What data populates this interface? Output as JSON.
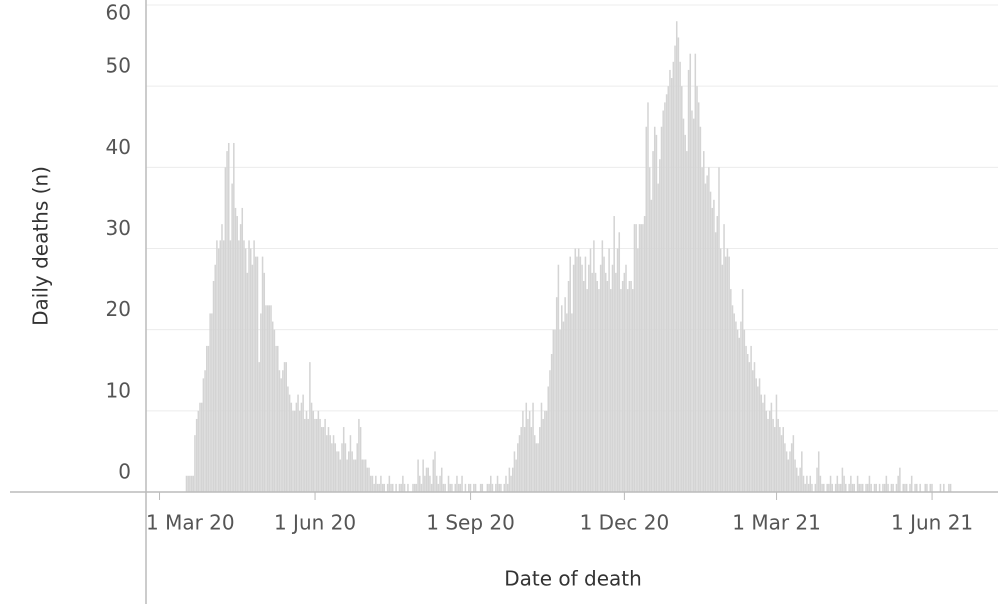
{
  "chart_data": {
    "type": "bar",
    "x_label": "Date of death",
    "y_label": "Daily deaths (n)",
    "color": "#d4d4d4",
    "grid": true,
    "xlim": [
      "2020-02-22",
      "2021-07-10"
    ],
    "xticks": [
      {
        "value": "2020-03-01",
        "label": "1 Mar 20"
      },
      {
        "value": "2020-06-01",
        "label": "1 Jun 20"
      },
      {
        "value": "2020-09-01",
        "label": "1 Sep 20"
      },
      {
        "value": "2020-12-01",
        "label": "1 Dec 20"
      },
      {
        "value": "2021-03-01",
        "label": "1 Mar 21"
      },
      {
        "value": "2021-06-01",
        "label": "1 Jun 21"
      }
    ],
    "ylim": [
      0,
      60
    ],
    "yticks": [
      0,
      10,
      20,
      30,
      40,
      50,
      60
    ],
    "x": [
      "2020-03-17",
      "2020-03-18",
      "2020-03-19",
      "2020-03-20",
      "2020-03-21",
      "2020-03-22",
      "2020-03-23",
      "2020-03-24",
      "2020-03-25",
      "2020-03-26",
      "2020-03-27",
      "2020-03-28",
      "2020-03-29",
      "2020-03-30",
      "2020-03-31",
      "2020-04-01",
      "2020-04-02",
      "2020-04-03",
      "2020-04-04",
      "2020-04-05",
      "2020-04-06",
      "2020-04-07",
      "2020-04-08",
      "2020-04-09",
      "2020-04-10",
      "2020-04-11",
      "2020-04-12",
      "2020-04-13",
      "2020-04-14",
      "2020-04-15",
      "2020-04-16",
      "2020-04-17",
      "2020-04-18",
      "2020-04-19",
      "2020-04-20",
      "2020-04-21",
      "2020-04-22",
      "2020-04-23",
      "2020-04-24",
      "2020-04-25",
      "2020-04-26",
      "2020-04-27",
      "2020-04-28",
      "2020-04-29",
      "2020-04-30",
      "2020-05-01",
      "2020-05-02",
      "2020-05-03",
      "2020-05-04",
      "2020-05-05",
      "2020-05-06",
      "2020-05-07",
      "2020-05-08",
      "2020-05-09",
      "2020-05-10",
      "2020-05-11",
      "2020-05-12",
      "2020-05-13",
      "2020-05-14",
      "2020-05-15",
      "2020-05-16",
      "2020-05-17",
      "2020-05-18",
      "2020-05-19",
      "2020-05-20",
      "2020-05-21",
      "2020-05-22",
      "2020-05-23",
      "2020-05-24",
      "2020-05-25",
      "2020-05-26",
      "2020-05-27",
      "2020-05-28",
      "2020-05-29",
      "2020-05-30",
      "2020-05-31",
      "2020-06-01",
      "2020-06-02",
      "2020-06-03",
      "2020-06-04",
      "2020-06-05",
      "2020-06-06",
      "2020-06-07",
      "2020-06-08",
      "2020-06-09",
      "2020-06-10",
      "2020-06-11",
      "2020-06-12",
      "2020-06-13",
      "2020-06-14",
      "2020-06-15",
      "2020-06-16",
      "2020-06-17",
      "2020-06-18",
      "2020-06-19",
      "2020-06-20",
      "2020-06-21",
      "2020-06-22",
      "2020-06-23",
      "2020-06-24",
      "2020-06-25",
      "2020-06-26",
      "2020-06-27",
      "2020-06-28",
      "2020-06-29",
      "2020-06-30",
      "2020-07-01",
      "2020-07-02",
      "2020-07-03",
      "2020-07-04",
      "2020-07-05",
      "2020-07-06",
      "2020-07-07",
      "2020-07-08",
      "2020-07-09",
      "2020-07-10",
      "2020-07-11",
      "2020-07-12",
      "2020-07-13",
      "2020-07-14",
      "2020-07-15",
      "2020-07-16",
      "2020-07-17",
      "2020-07-18",
      "2020-07-19",
      "2020-07-20",
      "2020-07-21",
      "2020-07-22",
      "2020-07-23",
      "2020-07-24",
      "2020-07-25",
      "2020-07-26",
      "2020-07-27",
      "2020-07-28",
      "2020-07-29",
      "2020-07-30",
      "2020-07-31",
      "2020-08-01",
      "2020-08-02",
      "2020-08-03",
      "2020-08-04",
      "2020-08-05",
      "2020-08-06",
      "2020-08-07",
      "2020-08-08",
      "2020-08-09",
      "2020-08-10",
      "2020-08-11",
      "2020-08-12",
      "2020-08-13",
      "2020-08-14",
      "2020-08-15",
      "2020-08-16",
      "2020-08-17",
      "2020-08-18",
      "2020-08-19",
      "2020-08-20",
      "2020-08-21",
      "2020-08-22",
      "2020-08-23",
      "2020-08-24",
      "2020-08-25",
      "2020-08-26",
      "2020-08-27",
      "2020-08-28",
      "2020-08-29",
      "2020-08-30",
      "2020-08-31",
      "2020-09-01",
      "2020-09-02",
      "2020-09-03",
      "2020-09-04",
      "2020-09-05",
      "2020-09-06",
      "2020-09-07",
      "2020-09-08",
      "2020-09-09",
      "2020-09-10",
      "2020-09-11",
      "2020-09-12",
      "2020-09-13",
      "2020-09-14",
      "2020-09-15",
      "2020-09-16",
      "2020-09-17",
      "2020-09-18",
      "2020-09-19",
      "2020-09-20",
      "2020-09-21",
      "2020-09-22",
      "2020-09-23",
      "2020-09-24",
      "2020-09-25",
      "2020-09-26",
      "2020-09-27",
      "2020-09-28",
      "2020-09-29",
      "2020-09-30",
      "2020-10-01",
      "2020-10-02",
      "2020-10-03",
      "2020-10-04",
      "2020-10-05",
      "2020-10-06",
      "2020-10-07",
      "2020-10-08",
      "2020-10-09",
      "2020-10-10",
      "2020-10-11",
      "2020-10-12",
      "2020-10-13",
      "2020-10-14",
      "2020-10-15",
      "2020-10-16",
      "2020-10-17",
      "2020-10-18",
      "2020-10-19",
      "2020-10-20",
      "2020-10-21",
      "2020-10-22",
      "2020-10-23",
      "2020-10-24",
      "2020-10-25",
      "2020-10-26",
      "2020-10-27",
      "2020-10-28",
      "2020-10-29",
      "2020-10-30",
      "2020-10-31",
      "2020-11-01",
      "2020-11-02",
      "2020-11-03",
      "2020-11-04",
      "2020-11-05",
      "2020-11-06",
      "2020-11-07",
      "2020-11-08",
      "2020-11-09",
      "2020-11-10",
      "2020-11-11",
      "2020-11-12",
      "2020-11-13",
      "2020-11-14",
      "2020-11-15",
      "2020-11-16",
      "2020-11-17",
      "2020-11-18",
      "2020-11-19",
      "2020-11-20",
      "2020-11-21",
      "2020-11-22",
      "2020-11-23",
      "2020-11-24",
      "2020-11-25",
      "2020-11-26",
      "2020-11-27",
      "2020-11-28",
      "2020-11-29",
      "2020-11-30",
      "2020-12-01",
      "2020-12-02",
      "2020-12-03",
      "2020-12-04",
      "2020-12-05",
      "2020-12-06",
      "2020-12-07",
      "2020-12-08",
      "2020-12-09",
      "2020-12-10",
      "2020-12-11",
      "2020-12-12",
      "2020-12-13",
      "2020-12-14",
      "2020-12-15",
      "2020-12-16",
      "2020-12-17",
      "2020-12-18",
      "2020-12-19",
      "2020-12-20",
      "2020-12-21",
      "2020-12-22",
      "2020-12-23",
      "2020-12-24",
      "2020-12-25",
      "2020-12-26",
      "2020-12-27",
      "2020-12-28",
      "2020-12-29",
      "2020-12-30",
      "2020-12-31",
      "2021-01-01",
      "2021-01-02",
      "2021-01-03",
      "2021-01-04",
      "2021-01-05",
      "2021-01-06",
      "2021-01-07",
      "2021-01-08",
      "2021-01-09",
      "2021-01-10",
      "2021-01-11",
      "2021-01-12",
      "2021-01-13",
      "2021-01-14",
      "2021-01-15",
      "2021-01-16",
      "2021-01-17",
      "2021-01-18",
      "2021-01-19",
      "2021-01-20",
      "2021-01-21",
      "2021-01-22",
      "2021-01-23",
      "2021-01-24",
      "2021-01-25",
      "2021-01-26",
      "2021-01-27",
      "2021-01-28",
      "2021-01-29",
      "2021-01-30",
      "2021-01-31",
      "2021-02-01",
      "2021-02-02",
      "2021-02-03",
      "2021-02-04",
      "2021-02-05",
      "2021-02-06",
      "2021-02-07",
      "2021-02-08",
      "2021-02-09",
      "2021-02-10",
      "2021-02-11",
      "2021-02-12",
      "2021-02-13",
      "2021-02-14",
      "2021-02-15",
      "2021-02-16",
      "2021-02-17",
      "2021-02-18",
      "2021-02-19",
      "2021-02-20",
      "2021-02-21",
      "2021-02-22",
      "2021-02-23",
      "2021-02-24",
      "2021-02-25",
      "2021-02-26",
      "2021-02-27",
      "2021-02-28",
      "2021-03-01",
      "2021-03-02",
      "2021-03-03",
      "2021-03-04",
      "2021-03-05",
      "2021-03-06",
      "2021-03-07",
      "2021-03-08",
      "2021-03-09",
      "2021-03-10",
      "2021-03-11",
      "2021-03-12",
      "2021-03-13",
      "2021-03-14",
      "2021-03-15",
      "2021-03-16",
      "2021-03-17",
      "2021-03-18",
      "2021-03-19",
      "2021-03-20",
      "2021-03-21",
      "2021-03-22",
      "2021-03-23",
      "2021-03-24",
      "2021-03-25",
      "2021-03-26",
      "2021-03-27",
      "2021-03-28",
      "2021-03-29",
      "2021-03-30",
      "2021-03-31",
      "2021-04-01",
      "2021-04-02",
      "2021-04-03",
      "2021-04-04",
      "2021-04-05",
      "2021-04-06",
      "2021-04-07",
      "2021-04-08",
      "2021-04-09",
      "2021-04-10",
      "2021-04-11",
      "2021-04-12",
      "2021-04-13",
      "2021-04-14",
      "2021-04-15",
      "2021-04-16",
      "2021-04-17",
      "2021-04-18",
      "2021-04-19",
      "2021-04-20",
      "2021-04-21",
      "2021-04-22",
      "2021-04-23",
      "2021-04-24",
      "2021-04-25",
      "2021-04-26",
      "2021-04-27",
      "2021-04-28",
      "2021-04-29",
      "2021-04-30",
      "2021-05-01",
      "2021-05-02",
      "2021-05-03",
      "2021-05-04",
      "2021-05-05",
      "2021-05-06",
      "2021-05-07",
      "2021-05-08",
      "2021-05-09",
      "2021-05-10",
      "2021-05-11",
      "2021-05-12",
      "2021-05-13",
      "2021-05-14",
      "2021-05-15",
      "2021-05-16",
      "2021-05-17",
      "2021-05-18",
      "2021-05-19",
      "2021-05-20",
      "2021-05-21",
      "2021-05-22",
      "2021-05-23",
      "2021-05-24",
      "2021-05-25",
      "2021-05-26",
      "2021-05-27",
      "2021-05-28",
      "2021-05-29",
      "2021-05-30",
      "2021-05-31",
      "2021-06-01",
      "2021-06-02",
      "2021-06-03",
      "2021-06-04",
      "2021-06-05",
      "2021-06-06",
      "2021-06-07",
      "2021-06-08",
      "2021-06-09",
      "2021-06-10",
      "2021-06-11",
      "2021-06-12"
    ],
    "values": [
      2,
      2,
      2,
      2,
      2,
      7,
      9,
      10,
      11,
      11,
      14,
      15,
      18,
      18,
      22,
      22,
      26,
      28,
      31,
      30,
      31,
      33,
      31,
      40,
      42,
      43,
      31,
      38,
      43,
      35,
      34,
      31,
      33,
      35,
      31,
      30,
      27,
      31,
      30,
      28,
      31,
      29,
      29,
      16,
      22,
      29,
      27,
      23,
      23,
      23,
      23,
      21,
      20,
      18,
      18,
      15,
      14,
      15,
      16,
      16,
      13,
      12,
      11,
      10,
      10,
      11,
      12,
      10,
      11,
      12,
      9,
      10,
      9,
      16,
      11,
      10,
      9,
      9,
      10,
      9,
      8,
      8,
      9,
      7,
      8,
      7,
      6,
      7,
      6,
      5,
      5,
      4,
      6,
      8,
      6,
      4,
      5,
      7,
      5,
      4,
      4,
      6,
      9,
      8,
      4,
      4,
      4,
      3,
      3,
      2,
      2,
      1,
      2,
      1,
      1,
      2,
      1,
      1,
      0,
      1,
      2,
      1,
      1,
      0,
      1,
      0,
      1,
      1,
      2,
      1,
      0,
      1,
      0,
      0,
      1,
      1,
      1,
      4,
      2,
      1,
      4,
      2,
      3,
      3,
      2,
      1,
      4,
      5,
      2,
      1,
      2,
      3,
      1,
      1,
      0,
      2,
      1,
      1,
      0,
      1,
      2,
      1,
      1,
      2,
      0,
      1,
      0,
      1,
      1,
      0,
      1,
      1,
      0,
      0,
      1,
      1,
      0,
      0,
      1,
      1,
      2,
      1,
      0,
      1,
      2,
      1,
      1,
      0,
      1,
      2,
      1,
      3,
      2,
      3,
      5,
      4,
      6,
      7,
      8,
      10,
      8,
      11,
      9,
      10,
      8,
      11,
      7,
      6,
      6,
      8,
      11,
      9,
      10,
      10,
      13,
      15,
      17,
      20,
      20,
      24,
      28,
      20,
      23,
      21,
      24,
      22,
      26,
      29,
      22,
      28,
      30,
      29,
      30,
      29,
      28,
      26,
      29,
      25,
      28,
      30,
      27,
      31,
      27,
      26,
      25,
      28,
      31,
      29,
      27,
      26,
      30,
      25,
      28,
      34,
      27,
      30,
      32,
      25,
      26,
      27,
      28,
      25,
      26,
      26,
      25,
      33,
      33,
      30,
      33,
      33,
      33,
      34,
      45,
      48,
      40,
      36,
      42,
      45,
      44,
      38,
      41,
      45,
      47,
      48,
      49,
      50,
      52,
      51,
      53,
      55,
      58,
      56,
      53,
      50,
      46,
      44,
      42,
      52,
      54,
      47,
      46,
      54,
      50,
      48,
      45,
      40,
      42,
      38,
      39,
      40,
      37,
      35,
      36,
      32,
      34,
      40,
      30,
      28,
      33,
      29,
      30,
      29,
      25,
      23,
      22,
      21,
      20,
      19,
      21,
      25,
      20,
      18,
      17,
      16,
      18,
      15,
      16,
      14,
      13,
      14,
      12,
      11,
      12,
      10,
      9,
      10,
      11,
      9,
      8,
      12,
      9,
      8,
      7,
      8,
      6,
      5,
      4,
      5,
      6,
      7,
      4,
      3,
      2,
      3,
      5,
      2,
      1,
      2,
      1,
      2,
      1,
      0,
      1,
      3,
      5,
      2,
      1,
      1,
      0,
      1,
      1,
      2,
      1,
      0,
      1,
      2,
      1,
      1,
      3,
      2,
      1,
      0,
      1,
      2,
      1,
      1,
      0,
      2,
      1,
      1,
      1,
      0,
      1,
      1,
      2,
      1,
      0,
      1,
      1,
      0,
      1,
      0,
      1,
      1,
      2,
      1,
      0,
      1,
      1,
      0,
      1,
      2,
      3,
      0,
      1,
      1,
      1,
      0,
      1,
      2,
      0,
      1,
      1,
      0,
      1,
      0,
      0,
      1,
      1,
      0,
      1,
      1,
      0,
      0,
      0,
      0,
      1,
      0,
      1,
      0,
      0,
      1,
      1
    ]
  }
}
